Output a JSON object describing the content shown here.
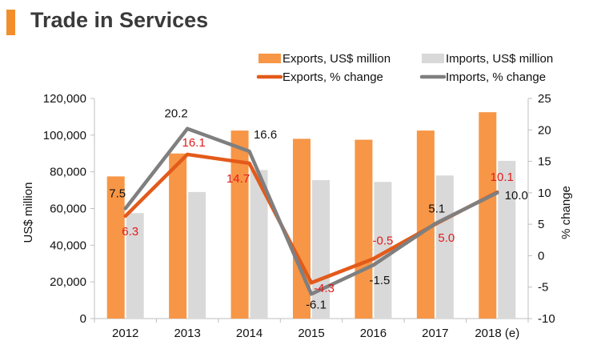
{
  "title": "Trade in Services",
  "colors": {
    "exports_bar": "#f79646",
    "imports_bar": "#d9d9d9",
    "exports_line": "#e35a1a",
    "imports_line": "#7f7f7f",
    "exports_label": "#e31b1b",
    "imports_label": "#111111",
    "accent": "#f28e2b"
  },
  "chart_data": {
    "type": "bar",
    "categories": [
      "2012",
      "2013",
      "2014",
      "2015",
      "2016",
      "2017",
      "2018 (e)"
    ],
    "series": [
      {
        "name": "Exports, US$ million",
        "type": "bar",
        "axis": "left",
        "values": [
          77500,
          90000,
          102500,
          98000,
          97500,
          102500,
          112500
        ]
      },
      {
        "name": "Imports, US$ million",
        "type": "bar",
        "axis": "left",
        "values": [
          57500,
          69000,
          81000,
          75500,
          74500,
          78000,
          86000
        ]
      },
      {
        "name": "Exports, % change",
        "type": "line",
        "axis": "right",
        "values": [
          6.3,
          16.1,
          14.7,
          -4.3,
          -0.5,
          5.0,
          10.1
        ],
        "labels": [
          "6.3",
          "16.1",
          "14.7",
          "-4.3",
          "-0.5",
          "5.0",
          "10.1"
        ]
      },
      {
        "name": "Imports, % change",
        "type": "line",
        "axis": "right",
        "values": [
          7.5,
          20.2,
          16.6,
          -6.1,
          -1.5,
          5.1,
          10.0
        ],
        "labels": [
          "7.5",
          "20.2",
          "16.6",
          "-6.1",
          "-1.5",
          "5.1",
          "10.0"
        ]
      }
    ],
    "ylabel": "US$ million",
    "y2label": "% change",
    "ylim": [
      0,
      120000
    ],
    "y2lim": [
      -10,
      25
    ],
    "yticks": [
      "0",
      "20,000",
      "40,000",
      "60,000",
      "80,000",
      "100,000",
      "120,000"
    ],
    "y2ticks": [
      "-10",
      "-5",
      "0",
      "5",
      "10",
      "15",
      "20",
      "25"
    ],
    "grid": false,
    "legend_position": "top-right"
  }
}
